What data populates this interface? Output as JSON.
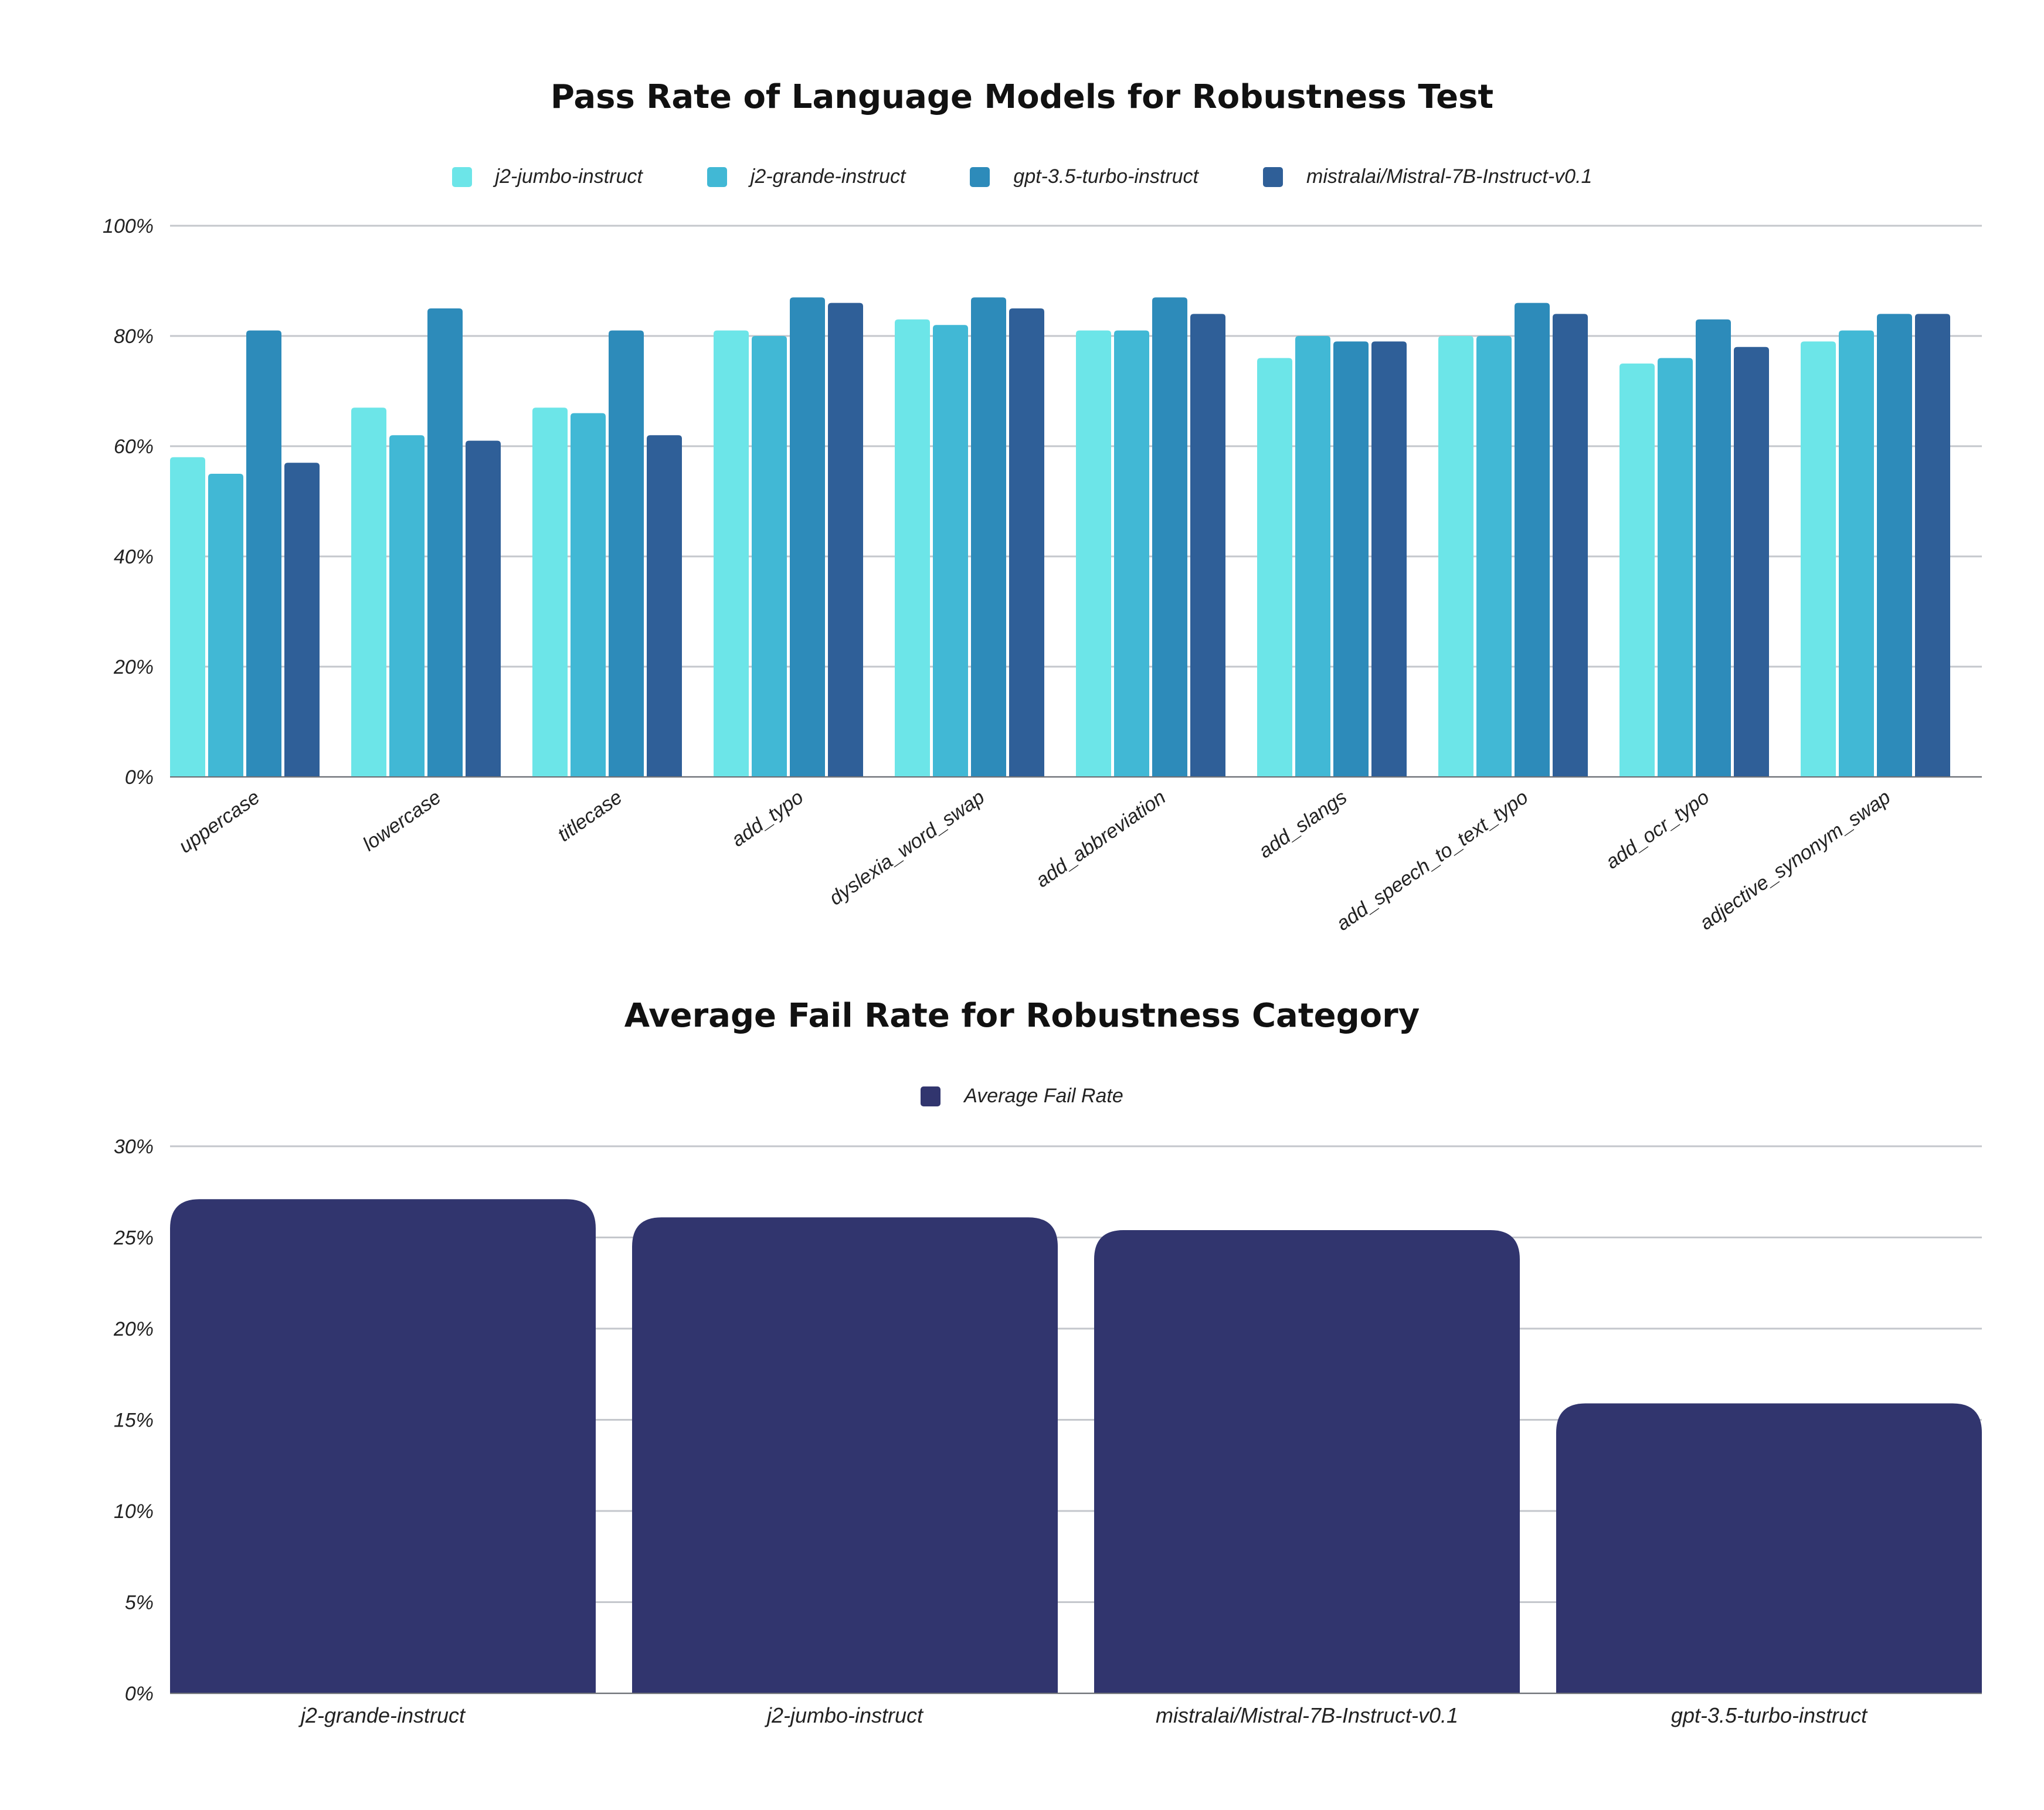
{
  "chart_data": [
    {
      "type": "bar",
      "title": "Pass Rate of Language Models for Robustness Test",
      "categories": [
        "uppercase",
        "lowercase",
        "titlecase",
        "add_typo",
        "dyslexia_word_swap",
        "add_abbreviation",
        "add_slangs",
        "add_speech_to_text_typo",
        "add_ocr_typo",
        "adjective_synonym_swap"
      ],
      "series": [
        {
          "name": "j2-jumbo-instruct",
          "color": "#6ce5e8",
          "values": [
            58,
            67,
            67,
            81,
            83,
            81,
            76,
            80,
            75,
            79
          ]
        },
        {
          "name": "j2-grande-instruct",
          "color": "#41b8d5",
          "values": [
            55,
            62,
            66,
            80,
            82,
            81,
            80,
            80,
            76,
            81
          ]
        },
        {
          "name": "gpt-3.5-turbo-instruct",
          "color": "#2d8bba",
          "values": [
            81,
            85,
            81,
            87,
            87,
            87,
            79,
            86,
            83,
            84
          ]
        },
        {
          "name": "mistralai/Mistral-7B-Instruct-v0.1",
          "color": "#2f5f98",
          "values": [
            57,
            61,
            62,
            86,
            85,
            84,
            79,
            84,
            78,
            84
          ]
        }
      ],
      "ylim": [
        0,
        100
      ],
      "yticks": [
        "0%",
        "20%",
        "40%",
        "60%",
        "80%",
        "100%"
      ],
      "grid": true,
      "legend": "top-center"
    },
    {
      "type": "bar",
      "title": "Average Fail Rate for Robustness Category",
      "categories": [
        "j2-grande-instruct",
        "j2-jumbo-instruct",
        "mistralai/Mistral-7B-Instruct-v0.1",
        "gpt-3.5-turbo-instruct"
      ],
      "series": [
        {
          "name": "Average Fail Rate",
          "color": "#31356e",
          "values": [
            27.1,
            26.1,
            25.4,
            15.9
          ]
        }
      ],
      "ylim": [
        0,
        30
      ],
      "yticks": [
        "0%",
        "5%",
        "10%",
        "15%",
        "20%",
        "25%",
        "30%"
      ],
      "grid": true,
      "legend": "top-center"
    }
  ]
}
